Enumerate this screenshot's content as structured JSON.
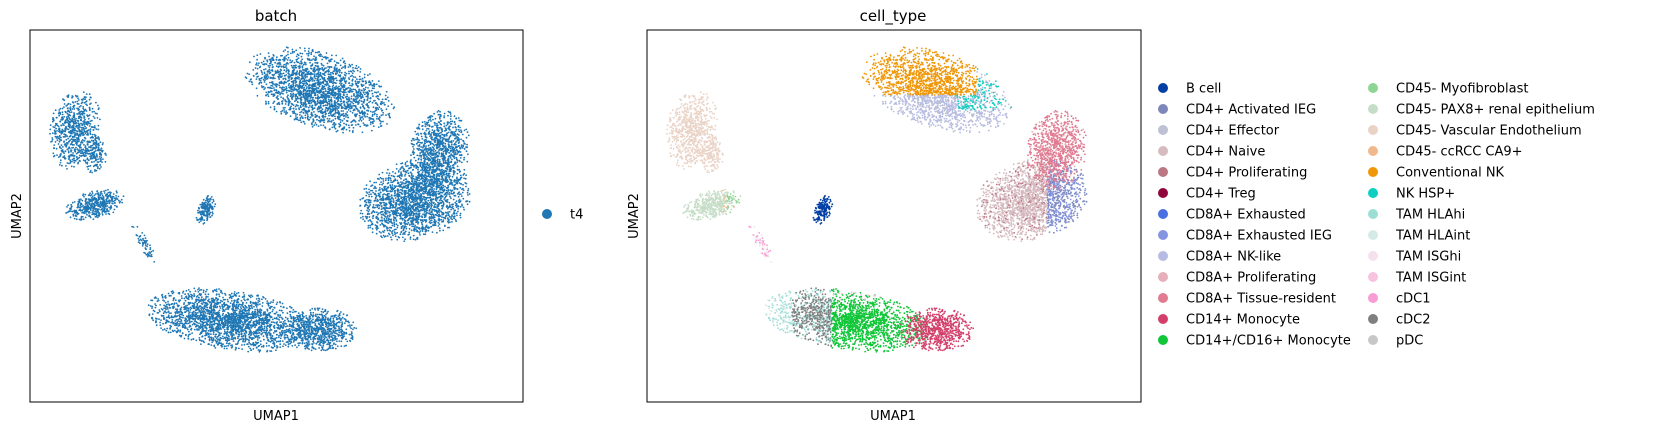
{
  "chart_data": [
    {
      "type": "scatter",
      "title": "batch",
      "xlabel": "UMAP1",
      "ylabel": "UMAP2",
      "xticks": false,
      "yticks": false,
      "legend": {
        "position": "right",
        "columns": 1,
        "entries": [
          {
            "label": "t4",
            "color": "#1f77b4"
          }
        ]
      },
      "point_color": "#1f77b4",
      "regions": [
        {
          "name": "t4",
          "shape": "scattered points across 7 clusters"
        }
      ]
    },
    {
      "type": "scatter",
      "title": "cell_type",
      "xlabel": "UMAP1",
      "ylabel": "UMAP2",
      "xticks": false,
      "yticks": false,
      "legend": {
        "position": "right",
        "columns": 2,
        "entries": [
          {
            "label": "B cell",
            "color": "#023fa5"
          },
          {
            "label": "CD4+ Activated IEG",
            "color": "#7d87b9"
          },
          {
            "label": "CD4+ Effector",
            "color": "#bec1d4"
          },
          {
            "label": "CD4+ Naive",
            "color": "#d6bcc0"
          },
          {
            "label": "CD4+ Proliferating",
            "color": "#bb7784"
          },
          {
            "label": "CD4+ Treg",
            "color": "#8e063b"
          },
          {
            "label": "CD8A+ Exhausted",
            "color": "#4a6fe3"
          },
          {
            "label": "CD8A+ Exhausted IEG",
            "color": "#8595e1"
          },
          {
            "label": "CD8A+ NK-like",
            "color": "#b5bbe3"
          },
          {
            "label": "CD8A+ Proliferating",
            "color": "#e6afb9"
          },
          {
            "label": "CD8A+ Tissue-resident",
            "color": "#e07b91"
          },
          {
            "label": "CD14+ Monocyte",
            "color": "#d33f6a"
          },
          {
            "label": "CD14+/CD16+ Monocyte",
            "color": "#11c638"
          },
          {
            "label": "CD45- Myofibroblast",
            "color": "#8dd593"
          },
          {
            "label": "CD45- PAX8+ renal epithelium",
            "color": "#c6dec7"
          },
          {
            "label": "CD45- Vascular Endothelium",
            "color": "#ead3c6"
          },
          {
            "label": "CD45- ccRCC CA9+",
            "color": "#f0b98d"
          },
          {
            "label": "Conventional NK",
            "color": "#ef9708"
          },
          {
            "label": "NK HSP+",
            "color": "#0fcfc0"
          },
          {
            "label": "TAM HLAhi",
            "color": "#9cded6"
          },
          {
            "label": "TAM HLAint",
            "color": "#d5eae7"
          },
          {
            "label": "TAM ISGhi",
            "color": "#f3e1eb"
          },
          {
            "label": "TAM ISGint",
            "color": "#f6c4e1"
          },
          {
            "label": "cDC1",
            "color": "#f79cd4"
          },
          {
            "label": "cDC2",
            "color": "#7f7f7f"
          },
          {
            "label": "pDC",
            "color": "#c7c7c7"
          }
        ]
      }
    }
  ]
}
